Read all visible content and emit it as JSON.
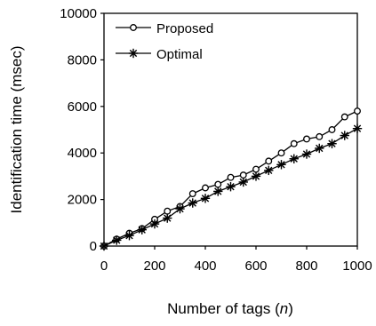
{
  "chart_data": {
    "type": "line",
    "title": "",
    "xlabel": "Number of tags (",
    "xlabel_var": "n",
    "xlabel_close": ")",
    "ylabel": "Identification time (msec)",
    "xlim": [
      0,
      1000
    ],
    "ylim": [
      0,
      10000
    ],
    "xticks": [
      0,
      200,
      400,
      600,
      800,
      1000
    ],
    "yticks": [
      0,
      2000,
      4000,
      6000,
      8000,
      10000
    ],
    "grid": false,
    "legend_position": "top-left",
    "x": [
      0,
      50,
      100,
      150,
      200,
      250,
      300,
      350,
      400,
      450,
      500,
      550,
      600,
      650,
      700,
      750,
      800,
      850,
      900,
      950,
      1000
    ],
    "series": [
      {
        "name": "Proposed",
        "marker": "circle",
        "values": [
          0,
          300,
          550,
          750,
          1150,
          1500,
          1700,
          2250,
          2500,
          2650,
          2950,
          3050,
          3300,
          3650,
          4000,
          4400,
          4600,
          4700,
          5000,
          5550,
          5800
        ]
      },
      {
        "name": "Optimal",
        "marker": "asterisk",
        "values": [
          0,
          250,
          450,
          700,
          950,
          1200,
          1600,
          1850,
          2050,
          2350,
          2550,
          2750,
          3000,
          3250,
          3500,
          3750,
          3950,
          4200,
          4400,
          4750,
          5050
        ]
      }
    ]
  }
}
